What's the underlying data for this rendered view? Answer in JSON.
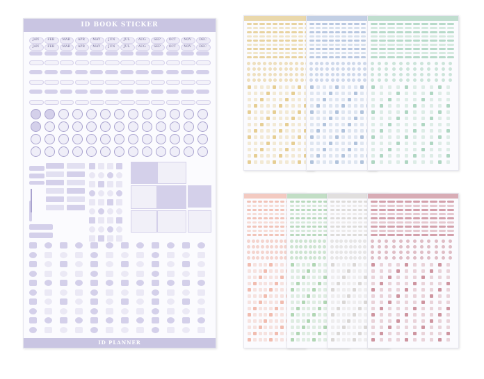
{
  "main_sheet": {
    "title": "ID BOOK STICKER",
    "footer": "ID PLANNER",
    "accent": "#a9a3cf",
    "accent_light": "#d4d0ea",
    "months_row1": [
      "JAN",
      "FEB",
      "MAR",
      "APR",
      "MAY",
      "JUN",
      "JUL",
      "AUG",
      "SEP",
      "OCT",
      "NOV",
      "DEC"
    ],
    "months_row2": [
      "JAN",
      "FEB",
      "MAR",
      "APR",
      "MAY",
      "JUN",
      "JUL",
      "AUG",
      "SEP",
      "OCT",
      "NOV",
      "DEC"
    ]
  },
  "variants_top": [
    {
      "color": "#e3c988"
    },
    {
      "color": "#a9bcd8"
    },
    {
      "color": "#a6d2bb"
    }
  ],
  "variants_bottom": [
    {
      "color": "#efb5a6"
    },
    {
      "color": "#a9d1ac"
    },
    {
      "color": "#d6d3d0"
    },
    {
      "color": "#c98a96"
    }
  ]
}
